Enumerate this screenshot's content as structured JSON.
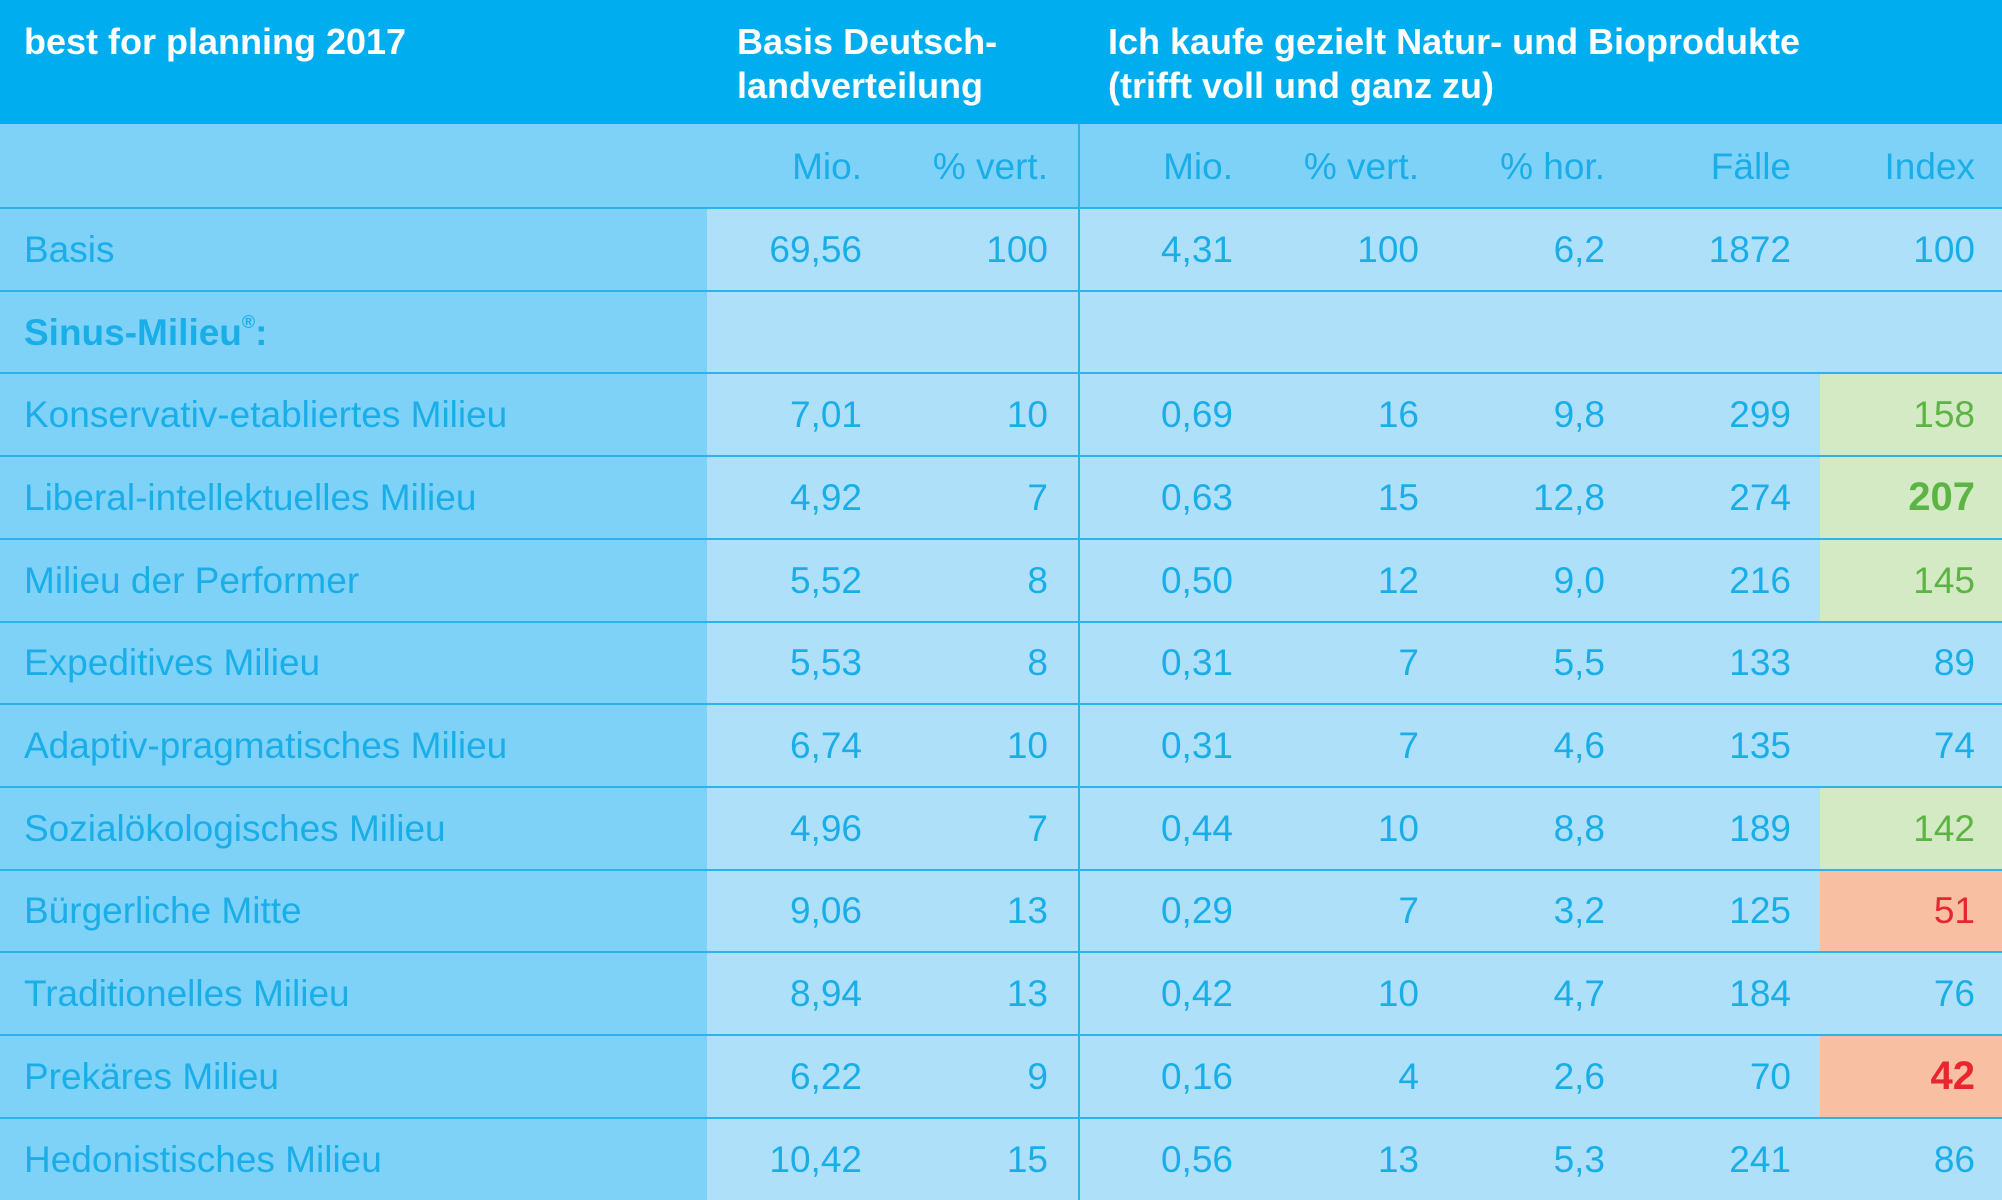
{
  "chart_data": {
    "type": "table",
    "header": {
      "title": "best for planning 2017",
      "basis_group": [
        "Basis Deutsch-",
        "landverteilung"
      ],
      "target_group": [
        "Ich kaufe gezielt Natur- und Bioprodukte",
        "(trifft voll und ganz zu)"
      ]
    },
    "columns": [
      "Mio.",
      "% vert.",
      "Mio.",
      "% vert.",
      "% hor.",
      "Fälle",
      "Index"
    ],
    "section_label": "Sinus-Milieu",
    "section_mark": "®",
    "section_suffix": ":",
    "basis_row": {
      "label": "Basis",
      "values": [
        "69,56",
        "100",
        "4,31",
        "100",
        "6,2",
        "1872",
        "100"
      ]
    },
    "rows": [
      {
        "label": "Konservativ-etabliertes Milieu",
        "values": [
          "7,01",
          "10",
          "0,69",
          "16",
          "9,8",
          "299",
          "158"
        ],
        "index_highlight": "green"
      },
      {
        "label": "Liberal-intellektuelles Milieu",
        "values": [
          "4,92",
          "7",
          "0,63",
          "15",
          "12,8",
          "274",
          "207"
        ],
        "index_highlight": "green-strong"
      },
      {
        "label": "Milieu der Performer",
        "values": [
          "5,52",
          "8",
          "0,50",
          "12",
          "9,0",
          "216",
          "145"
        ],
        "index_highlight": "green"
      },
      {
        "label": "Expeditives Milieu",
        "values": [
          "5,53",
          "8",
          "0,31",
          "7",
          "5,5",
          "133",
          "89"
        ],
        "index_highlight": "none"
      },
      {
        "label": "Adaptiv-pragmatisches Milieu",
        "values": [
          "6,74",
          "10",
          "0,31",
          "7",
          "4,6",
          "135",
          "74"
        ],
        "index_highlight": "none"
      },
      {
        "label": "Sozialökologisches Milieu",
        "values": [
          "4,96",
          "7",
          "0,44",
          "10",
          "8,8",
          "189",
          "142"
        ],
        "index_highlight": "green"
      },
      {
        "label": "Bürgerliche Mitte",
        "values": [
          "9,06",
          "13",
          "0,29",
          "7",
          "3,2",
          "125",
          "51"
        ],
        "index_highlight": "red"
      },
      {
        "label": "Traditionelles Milieu",
        "values": [
          "8,94",
          "13",
          "0,42",
          "10",
          "4,7",
          "184",
          "76"
        ],
        "index_highlight": "none"
      },
      {
        "label": "Prekäres Milieu",
        "values": [
          "6,22",
          "9",
          "0,16",
          "4",
          "2,6",
          "70",
          "42"
        ],
        "index_highlight": "red-strong"
      },
      {
        "label": "Hedonistisches Milieu",
        "values": [
          "10,42",
          "15",
          "0,56",
          "13",
          "5,3",
          "241",
          "86"
        ],
        "index_highlight": "none"
      }
    ]
  },
  "colors": {
    "header_bg": "#00aeef",
    "subheader_bg": "#7ed1f7",
    "label_col_bg": "#7ed1f7",
    "body_bg": "#aee0fa",
    "text": "#1aaee8",
    "grid": "#2db2ea",
    "highlight_green_bg": "#d4eac4",
    "highlight_green_text": "#5cb444",
    "highlight_red_bg": "#f9bfa3",
    "highlight_red_text": "#e8262f"
  }
}
